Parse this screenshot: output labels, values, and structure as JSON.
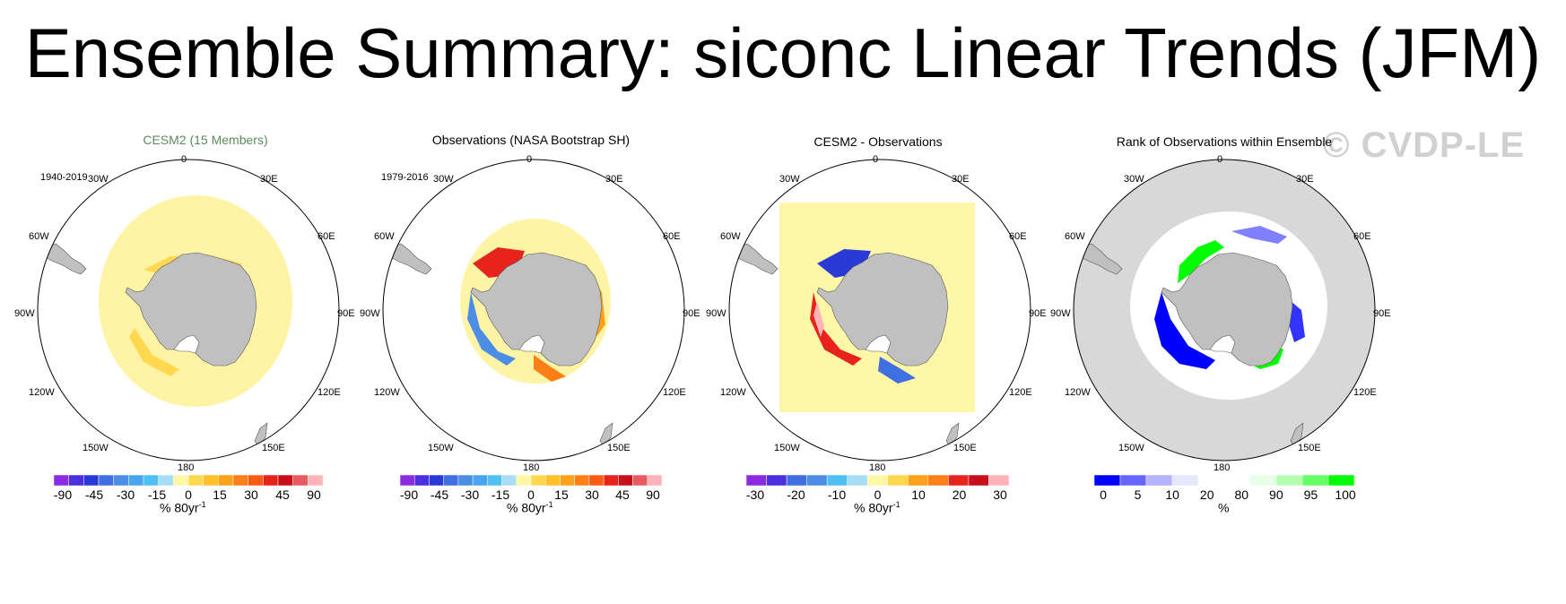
{
  "title": "Ensemble Summary: siconc Linear Trends (JFM)",
  "watermark": "© CVDP-LE",
  "panels": [
    {
      "title": "CESM2 (15 Members)",
      "title_color": "#5b8a5b",
      "period": "1940-2019",
      "colorbar": {
        "colors": [
          "#8a2be2",
          "#4b2fe0",
          "#2a3ad6",
          "#3f6fe0",
          "#4c8de6",
          "#4aa5ee",
          "#4ec0f2",
          "#a8def3",
          "#fff7a8",
          "#ffd84f",
          "#ffc12a",
          "#ffa21a",
          "#ff7f17",
          "#ff5a14",
          "#e8231c",
          "#c8101c",
          "#e85a62",
          "#ffb3b8"
        ],
        "labels": [
          "-90",
          "-45",
          "-30",
          "-15",
          "0",
          "15",
          "30",
          "45",
          "90"
        ],
        "unit": "% 80yr",
        "unit_sup": "-1"
      }
    },
    {
      "title": "Observations (NASA Bootstrap SH)",
      "title_color": "#000000",
      "period": "1979-2016",
      "colorbar": {
        "colors": [
          "#8a2be2",
          "#4b2fe0",
          "#2a3ad6",
          "#3f6fe0",
          "#4c8de6",
          "#4aa5ee",
          "#4ec0f2",
          "#a8def3",
          "#fff7a8",
          "#ffd84f",
          "#ffc12a",
          "#ffa21a",
          "#ff7f17",
          "#ff5a14",
          "#e8231c",
          "#c8101c",
          "#e85a62",
          "#ffb3b8"
        ],
        "labels": [
          "-90",
          "-45",
          "-30",
          "-15",
          "0",
          "15",
          "30",
          "45",
          "90"
        ],
        "unit": "% 80yr",
        "unit_sup": "-1"
      }
    },
    {
      "title": "CESM2 - Observations",
      "title_color": "#000000",
      "period": "",
      "colorbar": {
        "colors": [
          "#8a2be2",
          "#4b2fe0",
          "#3f6fe0",
          "#4c8de6",
          "#4ec0f2",
          "#a8def3",
          "#fff7a8",
          "#ffd84f",
          "#ffa21a",
          "#ff7f17",
          "#e8231c",
          "#c8101c",
          "#ffb3b8"
        ],
        "labels": [
          "-30",
          "-20",
          "-10",
          "0",
          "10",
          "20",
          "30"
        ],
        "unit": "% 80yr",
        "unit_sup": "-1"
      }
    },
    {
      "title": "Rank of Observations within Ensemble",
      "title_color": "#000000",
      "period": "",
      "colorbar": {
        "colors": [
          "#0000ff",
          "#6666ff",
          "#b3b3ff",
          "#e6e6ff",
          "#ffffff",
          "#ffffff",
          "#e6ffe6",
          "#b3ffb3",
          "#66ff66",
          "#00ff00"
        ],
        "labels": [
          "0",
          "5",
          "10",
          "20",
          "80",
          "90",
          "95",
          "100"
        ],
        "unit": "%",
        "unit_sup": ""
      }
    }
  ],
  "longitude_labels": {
    "top": "0",
    "bottom": "180",
    "l30": "30W",
    "r30": "30E",
    "l60": "60W",
    "r60": "60E",
    "l90": "90W",
    "r90": "90E",
    "l120": "120W",
    "r120": "120E",
    "l150": "150W",
    "r150": "150E"
  }
}
